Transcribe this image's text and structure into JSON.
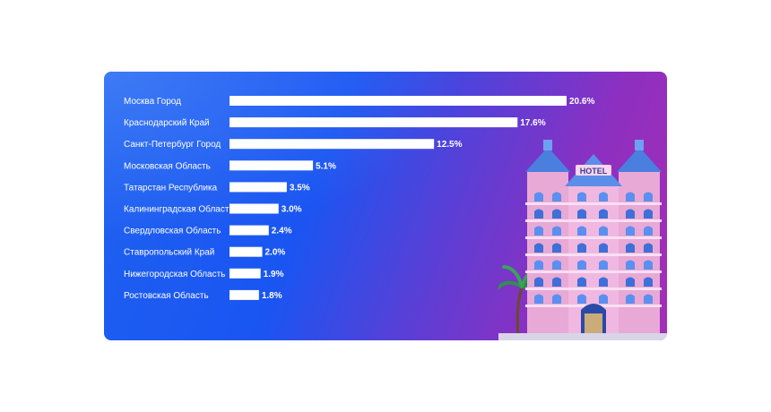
{
  "chart_data": {
    "type": "bar",
    "orientation": "horizontal",
    "categories": [
      "Москва Город",
      "Краснодарский Край",
      "Санкт-Петербург Город",
      "Московская Область",
      "Татарстан Республика",
      "Калининградская Область",
      "Свердловская Область",
      "Ставропольский Край",
      "Нижегородская Область",
      "Ростовская Область"
    ],
    "values": [
      20.6,
      17.6,
      12.5,
      5.1,
      3.5,
      3.0,
      2.4,
      2.0,
      1.9,
      1.8
    ],
    "value_labels": [
      "20.6%",
      "17.6%",
      "12.5%",
      "5.1%",
      "3.5%",
      "3.0%",
      "2.4%",
      "2.0%",
      "1.9%",
      "1.8%"
    ],
    "xlim": [
      0,
      20.6
    ],
    "grid": false,
    "legend": "none",
    "bar_color": "#ffffff"
  },
  "illustration": {
    "icon": "hotel-building-icon",
    "sign_text": "HOTEL"
  },
  "colors": {
    "background_start": "#1f61f0",
    "background_end": "#a52eb6"
  }
}
